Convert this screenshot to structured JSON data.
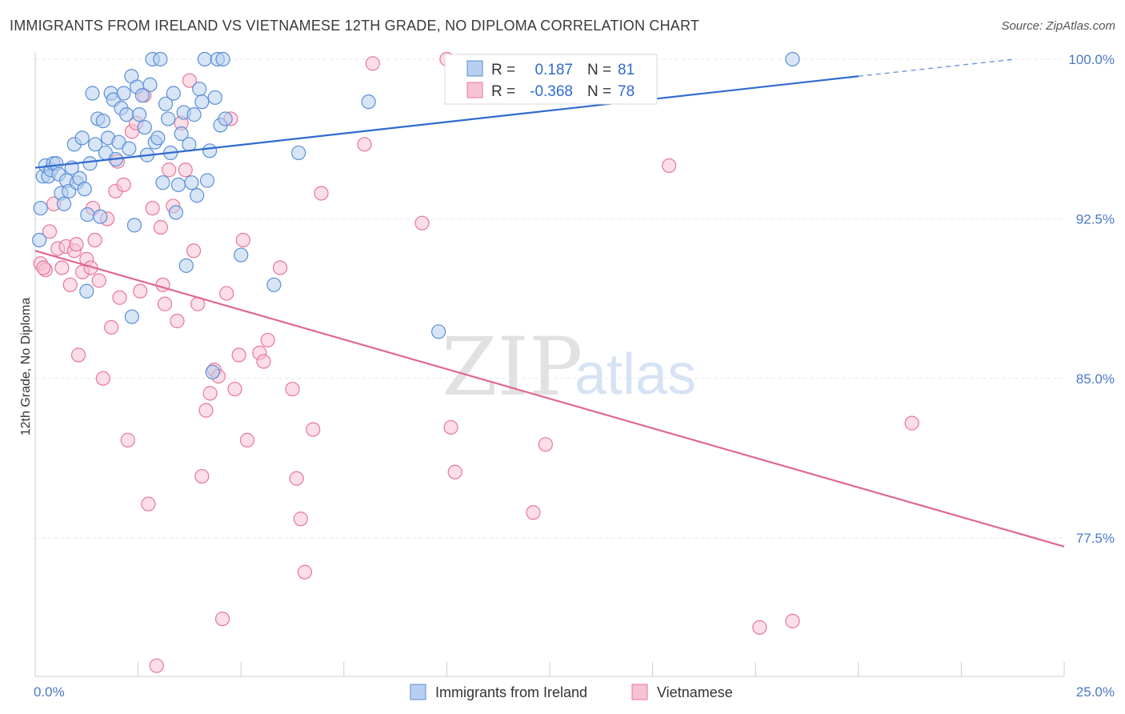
{
  "title": "IMMIGRANTS FROM IRELAND VS VIETNAMESE 12TH GRADE, NO DIPLOMA CORRELATION CHART",
  "source": "Source: ZipAtlas.com",
  "colors": {
    "ireland": "#5b8fd6",
    "ireland_fill": "#b7cff0",
    "vietnamese": "#e8769b",
    "vietnamese_fill": "#f7c3d4",
    "ireland_line": "#2f6ad0",
    "vietnamese_line": "#e06690",
    "tick_text": "#4a78c8"
  },
  "legend": {
    "r_label": "R =",
    "n_label": "N =",
    "ireland": {
      "r": "0.187",
      "n": "81"
    },
    "vietnamese": {
      "r": "-0.368",
      "n": "78"
    }
  },
  "bottom_legend": [
    "Immigrants from Ireland",
    "Vietnamese"
  ],
  "watermark": {
    "zip": "ZIP",
    "atlas": "atlas"
  },
  "chart_data": {
    "type": "scatter",
    "title": "IMMIGRANTS FROM IRELAND VS VIETNAMESE 12TH GRADE, NO DIPLOMA CORRELATION CHART",
    "xlabel": "",
    "ylabel": "12th Grade, No Diploma",
    "xlim": [
      0,
      25
    ],
    "ylim": [
      71.0,
      100.3
    ],
    "x_tick_labels": [
      {
        "value": 0,
        "label": "0.0%"
      },
      {
        "value": 25,
        "label": "25.0%"
      }
    ],
    "y_tick_labels": [
      {
        "value": 100,
        "label": "100.0%"
      },
      {
        "value": 92.5,
        "label": "92.5%"
      },
      {
        "value": 85,
        "label": "85.0%"
      },
      {
        "value": 77.5,
        "label": "77.5%"
      }
    ],
    "grid": true,
    "legend_position": "top-center",
    "series": [
      {
        "name": "Immigrants from Ireland",
        "r": 0.187,
        "n": 81,
        "trend": {
          "x": [
            0,
            20
          ],
          "y": [
            94.9,
            99.2
          ],
          "dashed_to": [
            23.8,
            100.0
          ]
        },
        "points": [
          [
            0.13,
            93.0
          ],
          [
            0.19,
            94.5
          ],
          [
            0.25,
            95.0
          ],
          [
            0.32,
            94.5
          ],
          [
            0.38,
            94.8
          ],
          [
            0.44,
            95.1
          ],
          [
            0.51,
            95.1
          ],
          [
            0.57,
            94.6
          ],
          [
            0.63,
            93.7
          ],
          [
            0.7,
            93.2
          ],
          [
            0.76,
            94.3
          ],
          [
            0.82,
            93.8
          ],
          [
            0.89,
            94.9
          ],
          [
            0.95,
            96.0
          ],
          [
            1.01,
            94.2
          ],
          [
            1.08,
            94.4
          ],
          [
            1.14,
            96.3
          ],
          [
            1.2,
            93.9
          ],
          [
            1.27,
            92.7
          ],
          [
            1.33,
            95.1
          ],
          [
            1.39,
            98.4
          ],
          [
            1.46,
            96.0
          ],
          [
            1.52,
            97.2
          ],
          [
            1.58,
            92.6
          ],
          [
            1.65,
            97.1
          ],
          [
            1.71,
            95.6
          ],
          [
            1.77,
            96.3
          ],
          [
            1.84,
            98.4
          ],
          [
            1.9,
            98.1
          ],
          [
            1.96,
            95.3
          ],
          [
            2.03,
            96.1
          ],
          [
            2.09,
            97.7
          ],
          [
            2.15,
            98.4
          ],
          [
            2.22,
            97.4
          ],
          [
            2.28,
            95.8
          ],
          [
            2.34,
            99.2
          ],
          [
            2.41,
            92.2
          ],
          [
            2.47,
            98.7
          ],
          [
            2.53,
            97.4
          ],
          [
            2.6,
            98.3
          ],
          [
            2.66,
            96.8
          ],
          [
            2.72,
            95.5
          ],
          [
            2.79,
            98.8
          ],
          [
            2.85,
            100.0
          ],
          [
            2.91,
            96.1
          ],
          [
            2.98,
            96.3
          ],
          [
            3.04,
            100.0
          ],
          [
            3.1,
            94.2
          ],
          [
            3.17,
            97.9
          ],
          [
            3.23,
            97.2
          ],
          [
            3.29,
            95.6
          ],
          [
            3.36,
            98.4
          ],
          [
            3.42,
            92.8
          ],
          [
            3.48,
            94.1
          ],
          [
            3.55,
            96.5
          ],
          [
            3.61,
            97.5
          ],
          [
            3.67,
            90.3
          ],
          [
            3.74,
            96.0
          ],
          [
            3.8,
            94.2
          ],
          [
            3.86,
            97.4
          ],
          [
            3.93,
            93.6
          ],
          [
            3.99,
            98.6
          ],
          [
            4.05,
            98.0
          ],
          [
            4.12,
            100.0
          ],
          [
            4.18,
            94.3
          ],
          [
            4.24,
            95.7
          ],
          [
            4.31,
            85.3
          ],
          [
            4.37,
            98.2
          ],
          [
            4.43,
            100.0
          ],
          [
            4.5,
            96.9
          ],
          [
            4.56,
            100.0
          ],
          [
            4.62,
            97.2
          ],
          [
            5.0,
            90.8
          ],
          [
            5.8,
            89.4
          ],
          [
            6.4,
            95.6
          ],
          [
            8.1,
            98.0
          ],
          [
            9.8,
            87.2
          ],
          [
            18.4,
            100.0
          ],
          [
            0.1,
            91.5
          ],
          [
            1.25,
            89.1
          ],
          [
            2.35,
            87.9
          ]
        ]
      },
      {
        "name": "Vietnamese",
        "r": -0.368,
        "n": 78,
        "trend": {
          "x": [
            0,
            25
          ],
          "y": [
            91.0,
            77.1
          ]
        },
        "points": [
          [
            0.13,
            90.4
          ],
          [
            0.25,
            90.1
          ],
          [
            0.35,
            91.9
          ],
          [
            0.45,
            93.2
          ],
          [
            0.55,
            91.1
          ],
          [
            0.65,
            90.2
          ],
          [
            0.75,
            91.2
          ],
          [
            0.85,
            89.4
          ],
          [
            0.95,
            91.0
          ],
          [
            1.05,
            86.1
          ],
          [
            1.15,
            90.0
          ],
          [
            1.25,
            90.6
          ],
          [
            1.35,
            90.2
          ],
          [
            1.45,
            91.5
          ],
          [
            1.55,
            89.6
          ],
          [
            1.65,
            85.0
          ],
          [
            1.75,
            92.5
          ],
          [
            1.85,
            87.4
          ],
          [
            1.95,
            93.8
          ],
          [
            2.05,
            88.8
          ],
          [
            2.15,
            94.1
          ],
          [
            2.25,
            82.1
          ],
          [
            2.35,
            96.6
          ],
          [
            2.45,
            97.0
          ],
          [
            2.55,
            89.1
          ],
          [
            2.65,
            98.3
          ],
          [
            2.75,
            79.1
          ],
          [
            2.85,
            93.0
          ],
          [
            2.95,
            71.5
          ],
          [
            3.05,
            92.1
          ],
          [
            3.15,
            88.5
          ],
          [
            3.25,
            94.8
          ],
          [
            3.35,
            93.1
          ],
          [
            3.45,
            87.7
          ],
          [
            3.55,
            97.0
          ],
          [
            3.65,
            94.8
          ],
          [
            3.75,
            99.0
          ],
          [
            3.85,
            91.0
          ],
          [
            3.95,
            88.5
          ],
          [
            4.05,
            80.4
          ],
          [
            4.15,
            83.5
          ],
          [
            4.25,
            84.3
          ],
          [
            4.35,
            85.4
          ],
          [
            4.45,
            85.1
          ],
          [
            4.55,
            73.7
          ],
          [
            4.65,
            89.0
          ],
          [
            4.75,
            97.2
          ],
          [
            4.85,
            84.5
          ],
          [
            4.95,
            86.1
          ],
          [
            5.05,
            91.5
          ],
          [
            5.15,
            82.1
          ],
          [
            5.45,
            86.2
          ],
          [
            5.55,
            85.8
          ],
          [
            5.65,
            86.8
          ],
          [
            5.95,
            90.2
          ],
          [
            6.25,
            84.5
          ],
          [
            6.35,
            80.3
          ],
          [
            6.45,
            78.4
          ],
          [
            6.55,
            75.9
          ],
          [
            6.75,
            82.6
          ],
          [
            6.95,
            93.7
          ],
          [
            8.0,
            96.0
          ],
          [
            8.2,
            99.8
          ],
          [
            9.4,
            92.3
          ],
          [
            10.0,
            100.0
          ],
          [
            10.1,
            82.7
          ],
          [
            10.2,
            80.6
          ],
          [
            12.1,
            78.7
          ],
          [
            12.4,
            81.9
          ],
          [
            15.4,
            95.0
          ],
          [
            17.6,
            73.3
          ],
          [
            18.4,
            73.6
          ],
          [
            21.3,
            82.9
          ],
          [
            0.2,
            90.2
          ],
          [
            1.0,
            91.3
          ],
          [
            3.1,
            89.4
          ],
          [
            1.4,
            93.0
          ],
          [
            2.0,
            95.2
          ]
        ]
      }
    ]
  }
}
